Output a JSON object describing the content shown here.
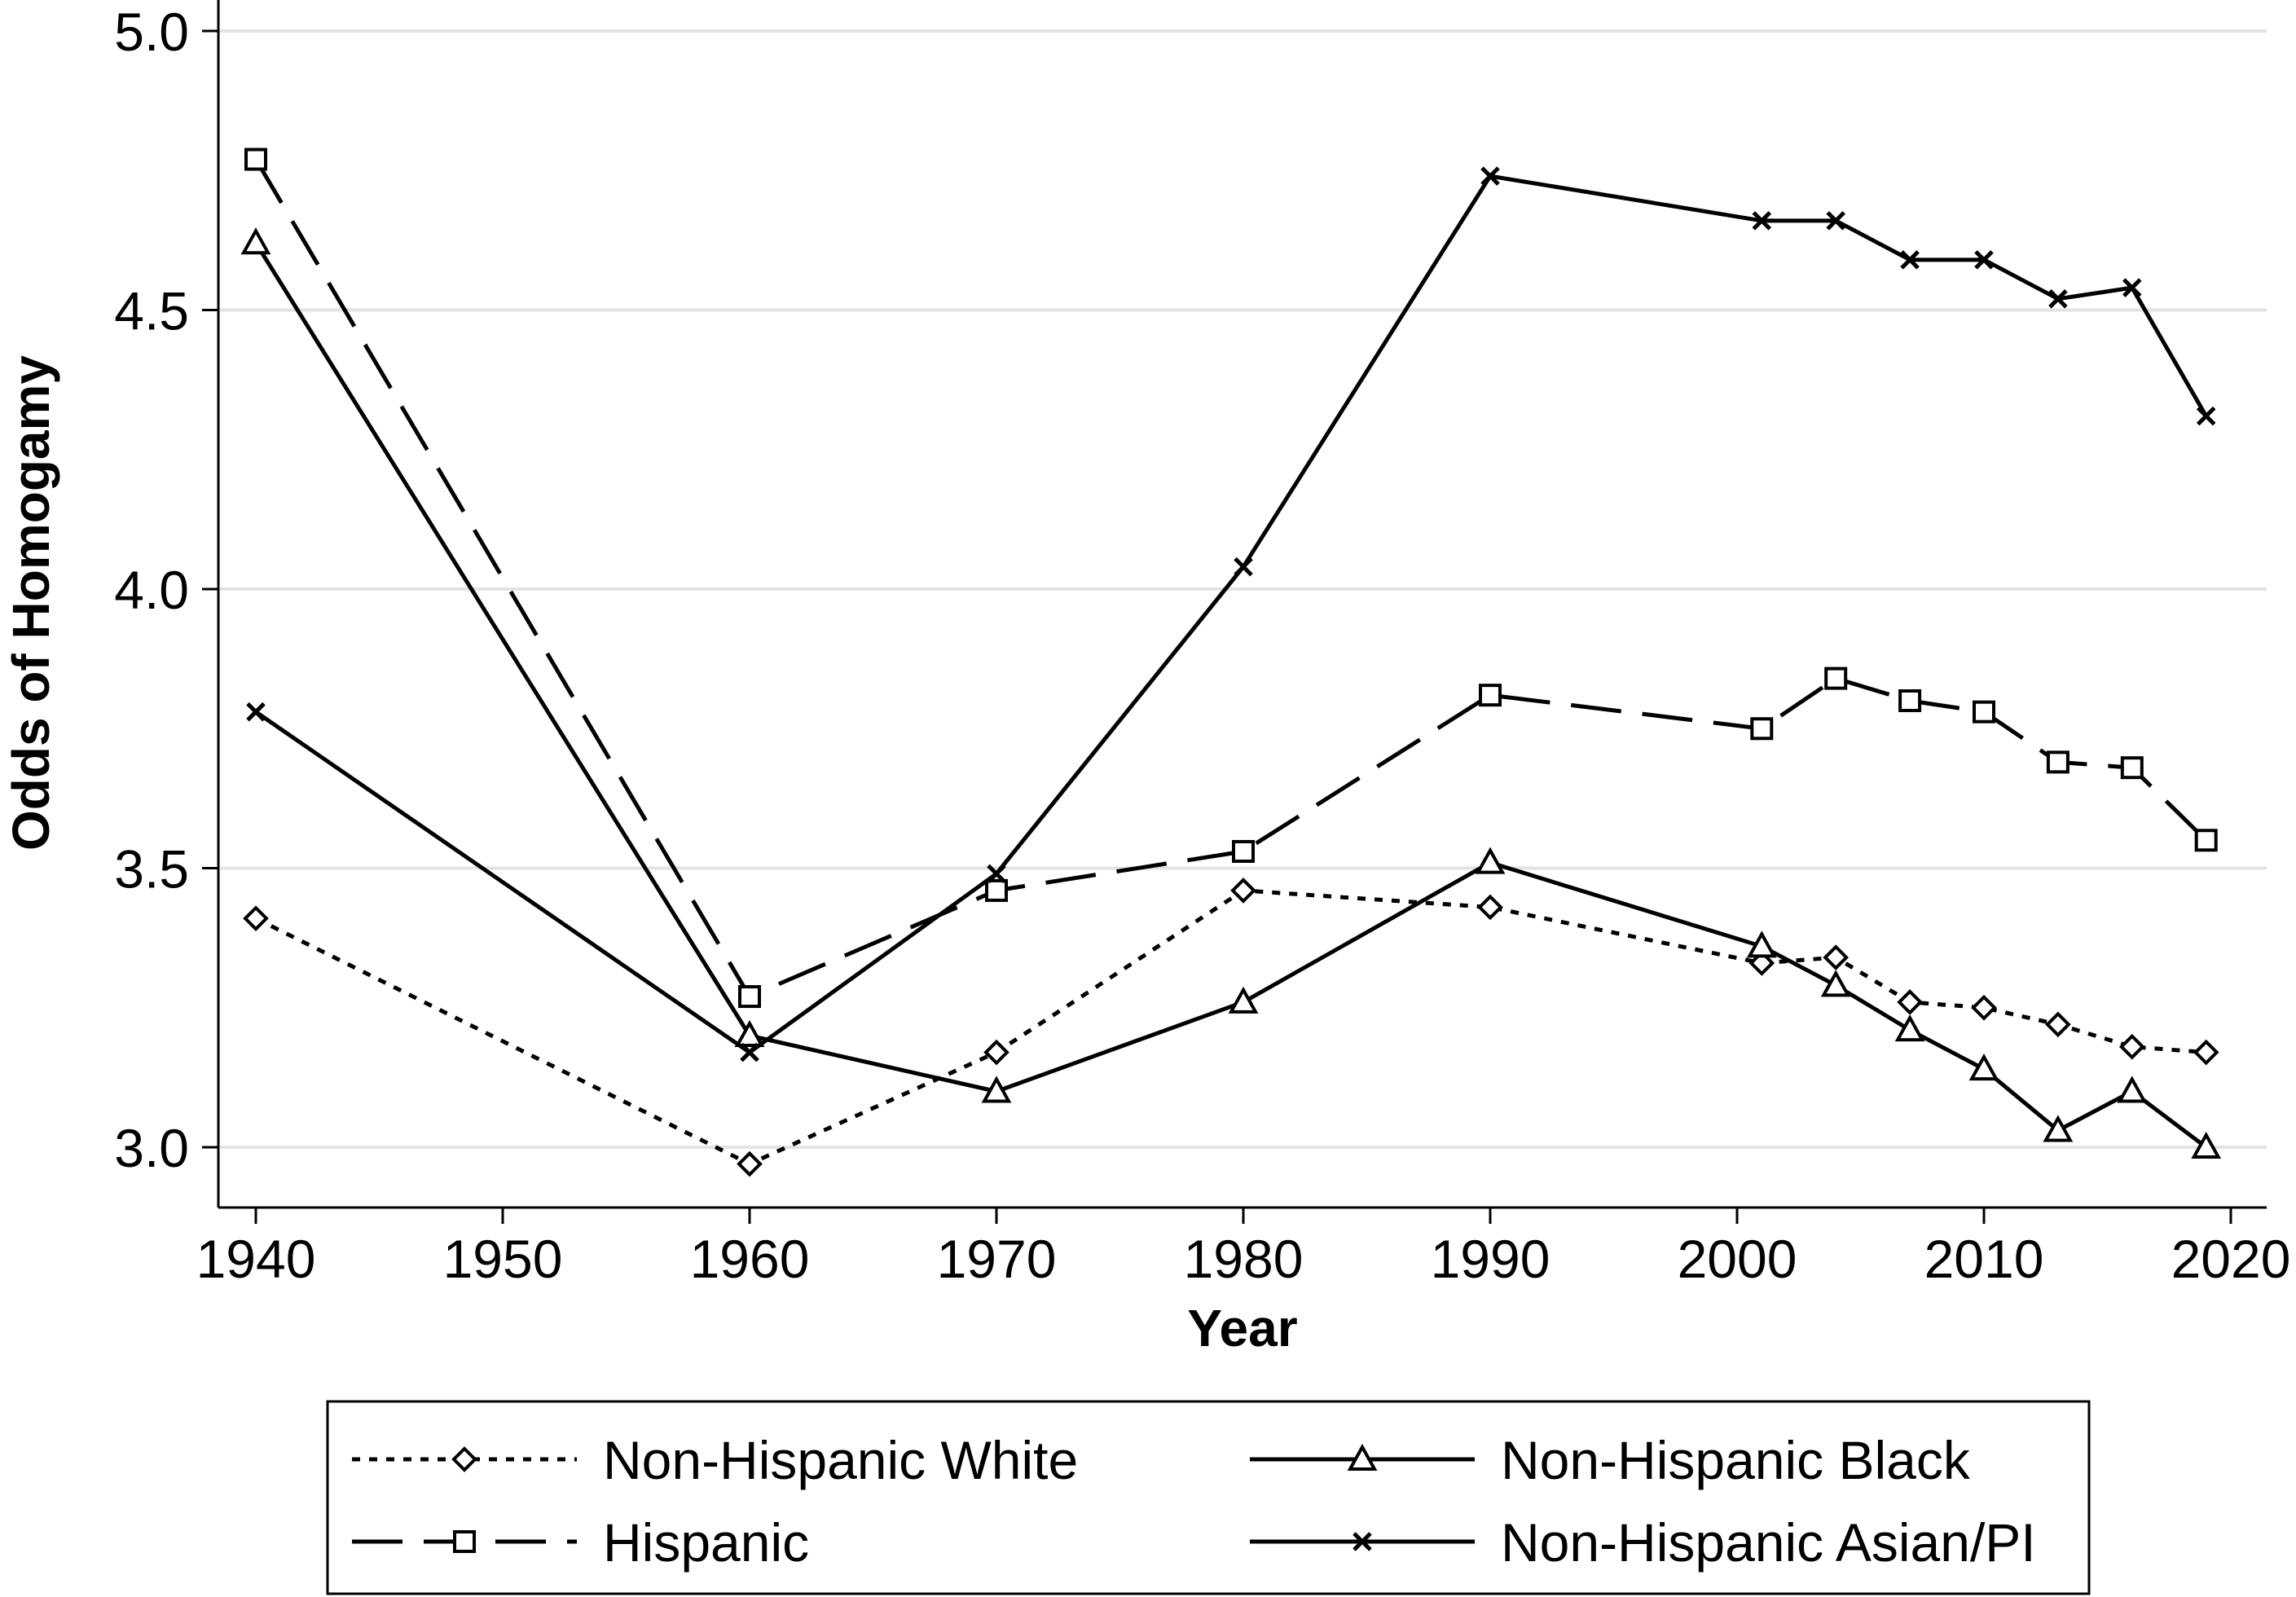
{
  "chart_data": {
    "type": "line",
    "xlabel": "Year",
    "ylabel": "Odds of Homogamy",
    "xlim": [
      1938.5,
      2021.5
    ],
    "ylim": [
      2.92,
      5.07
    ],
    "x_ticks": [
      "1940",
      "1950",
      "1960",
      "1970",
      "1980",
      "1990",
      "2000",
      "2010",
      "2020"
    ],
    "y_ticks": [
      "3.0",
      "3.5",
      "4.0",
      "4.5",
      "5.0"
    ],
    "grid": "horizontal",
    "legend_position": "bottom",
    "series": [
      {
        "name": "Non-Hispanic White",
        "style": "dotted",
        "marker": "diamond",
        "x": [
          1940,
          1960,
          1970,
          1980,
          1990,
          2001,
          2004,
          2007,
          2010,
          2013,
          2016,
          2019
        ],
        "values": [
          3.41,
          2.97,
          3.17,
          3.46,
          3.43,
          3.33,
          3.34,
          3.26,
          3.25,
          3.22,
          3.18,
          3.17
        ]
      },
      {
        "name": "Non-Hispanic Black",
        "style": "solid",
        "marker": "triangle",
        "x": [
          1940,
          1960,
          1970,
          1980,
          1990,
          2001,
          2004,
          2007,
          2010,
          2013,
          2016,
          2019
        ],
        "values": [
          4.62,
          3.2,
          3.1,
          3.26,
          3.51,
          3.36,
          3.29,
          3.21,
          3.14,
          3.03,
          3.1,
          3.0
        ]
      },
      {
        "name": "Hispanic",
        "style": "dashed",
        "marker": "square",
        "x": [
          1940,
          1960,
          1970,
          1980,
          1990,
          2001,
          2004,
          2007,
          2010,
          2013,
          2016,
          2019
        ],
        "values": [
          4.77,
          3.27,
          3.46,
          3.53,
          3.81,
          3.75,
          3.84,
          3.8,
          3.78,
          3.69,
          3.68,
          3.55
        ]
      },
      {
        "name": "Non-Hispanic Asian/PI",
        "style": "solid",
        "marker": "x",
        "x": [
          1940,
          1960,
          1970,
          1980,
          1990,
          2001,
          2004,
          2007,
          2010,
          2013,
          2016,
          2019
        ],
        "values": [
          3.78,
          3.17,
          3.49,
          4.04,
          4.74,
          4.66,
          4.66,
          4.59,
          4.59,
          4.52,
          4.54,
          4.31
        ]
      }
    ]
  }
}
